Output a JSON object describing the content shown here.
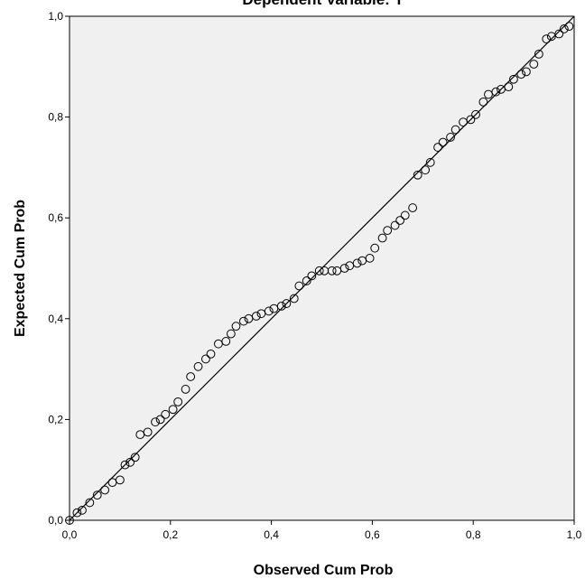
{
  "chart_data": {
    "type": "scatter",
    "title": "Dependent Variable: Y",
    "xlabel": "Observed Cum Prob",
    "ylabel": "Expected Cum Prob",
    "xlim": [
      0,
      1
    ],
    "ylim": [
      0,
      1
    ],
    "x_ticks": [
      "0,0",
      "0,2",
      "0,4",
      "0,6",
      "0,8",
      "1,0"
    ],
    "y_ticks": [
      "0,0",
      "0,2",
      "0,4",
      "0,6",
      "0,8",
      "1,0"
    ],
    "grid": false,
    "reference_line": {
      "from": [
        0,
        0
      ],
      "to": [
        1,
        1
      ]
    },
    "colors": {
      "plot_background": "#f0f0f0",
      "marker_edge": "#000000",
      "line": "#000000"
    },
    "points": [
      [
        0.0,
        0.0
      ],
      [
        0.015,
        0.015
      ],
      [
        0.025,
        0.02
      ],
      [
        0.04,
        0.035
      ],
      [
        0.055,
        0.05
      ],
      [
        0.07,
        0.06
      ],
      [
        0.085,
        0.075
      ],
      [
        0.1,
        0.08
      ],
      [
        0.11,
        0.11
      ],
      [
        0.12,
        0.115
      ],
      [
        0.13,
        0.125
      ],
      [
        0.14,
        0.17
      ],
      [
        0.155,
        0.175
      ],
      [
        0.17,
        0.195
      ],
      [
        0.18,
        0.2
      ],
      [
        0.19,
        0.21
      ],
      [
        0.205,
        0.22
      ],
      [
        0.215,
        0.235
      ],
      [
        0.23,
        0.26
      ],
      [
        0.24,
        0.285
      ],
      [
        0.255,
        0.305
      ],
      [
        0.27,
        0.32
      ],
      [
        0.28,
        0.33
      ],
      [
        0.295,
        0.35
      ],
      [
        0.31,
        0.355
      ],
      [
        0.32,
        0.37
      ],
      [
        0.33,
        0.385
      ],
      [
        0.345,
        0.395
      ],
      [
        0.355,
        0.4
      ],
      [
        0.37,
        0.405
      ],
      [
        0.38,
        0.41
      ],
      [
        0.395,
        0.415
      ],
      [
        0.405,
        0.42
      ],
      [
        0.42,
        0.425
      ],
      [
        0.43,
        0.43
      ],
      [
        0.445,
        0.44
      ],
      [
        0.455,
        0.465
      ],
      [
        0.47,
        0.475
      ],
      [
        0.48,
        0.485
      ],
      [
        0.495,
        0.495
      ],
      [
        0.505,
        0.495
      ],
      [
        0.52,
        0.495
      ],
      [
        0.53,
        0.495
      ],
      [
        0.545,
        0.5
      ],
      [
        0.555,
        0.505
      ],
      [
        0.57,
        0.51
      ],
      [
        0.58,
        0.515
      ],
      [
        0.595,
        0.52
      ],
      [
        0.605,
        0.54
      ],
      [
        0.62,
        0.56
      ],
      [
        0.63,
        0.575
      ],
      [
        0.645,
        0.585
      ],
      [
        0.655,
        0.595
      ],
      [
        0.665,
        0.605
      ],
      [
        0.68,
        0.62
      ],
      [
        0.69,
        0.685
      ],
      [
        0.705,
        0.695
      ],
      [
        0.715,
        0.71
      ],
      [
        0.73,
        0.74
      ],
      [
        0.74,
        0.75
      ],
      [
        0.755,
        0.76
      ],
      [
        0.765,
        0.775
      ],
      [
        0.78,
        0.79
      ],
      [
        0.795,
        0.795
      ],
      [
        0.805,
        0.805
      ],
      [
        0.82,
        0.83
      ],
      [
        0.83,
        0.845
      ],
      [
        0.845,
        0.85
      ],
      [
        0.855,
        0.855
      ],
      [
        0.87,
        0.86
      ],
      [
        0.88,
        0.875
      ],
      [
        0.895,
        0.885
      ],
      [
        0.905,
        0.89
      ],
      [
        0.92,
        0.905
      ],
      [
        0.93,
        0.925
      ],
      [
        0.945,
        0.955
      ],
      [
        0.955,
        0.96
      ],
      [
        0.97,
        0.965
      ],
      [
        0.98,
        0.975
      ],
      [
        0.99,
        0.98
      ]
    ]
  }
}
